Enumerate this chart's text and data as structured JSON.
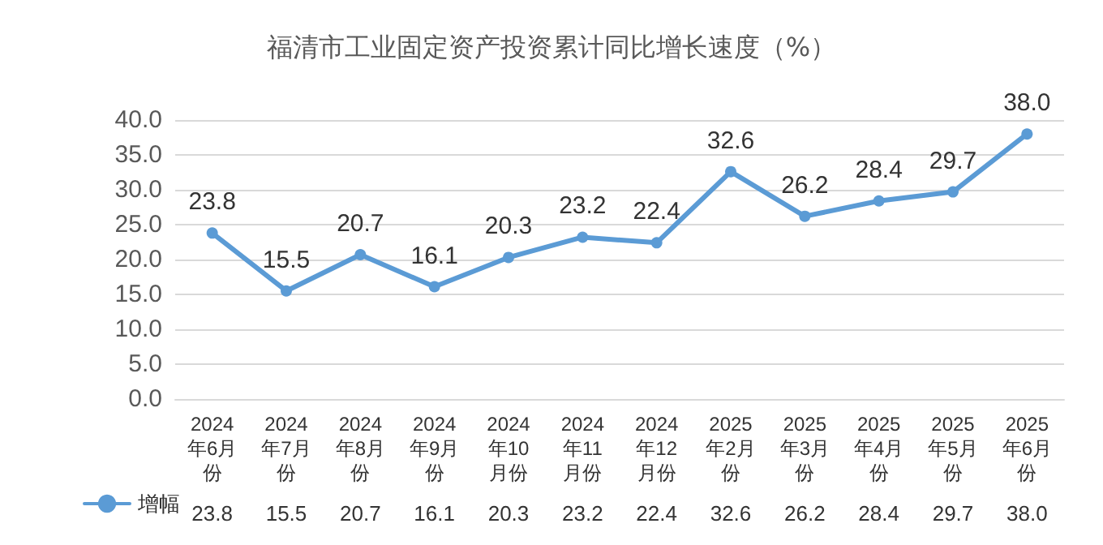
{
  "chart_data": {
    "type": "line",
    "title": "福清市工业固定资产投资累计同比增长速度（%）",
    "categories": [
      "2024年6月份",
      "2024年7月份",
      "2024年8月份",
      "2024年9月份",
      "2024年10月份",
      "2024年11月份",
      "2024年12月份",
      "2025年2月份",
      "2025年3月份",
      "2025年4月份",
      "2025年5月份",
      "2025年6月份"
    ],
    "series": [
      {
        "name": "增幅",
        "color": "#5b9bd5",
        "values": [
          23.8,
          15.5,
          20.7,
          16.1,
          20.3,
          23.2,
          22.4,
          32.6,
          26.2,
          28.4,
          29.7,
          38.0
        ],
        "value_labels": [
          "23.8",
          "15.5",
          "20.7",
          "16.1",
          "20.3",
          "23.2",
          "22.4",
          "32.6",
          "26.2",
          "28.4",
          "29.7",
          "38.0"
        ]
      }
    ],
    "ylim": [
      0,
      40
    ],
    "yticks": [
      {
        "value": 0,
        "label": "0.0"
      },
      {
        "value": 5,
        "label": "5.0"
      },
      {
        "value": 10,
        "label": "10.0"
      },
      {
        "value": 15,
        "label": "15.0"
      },
      {
        "value": 20,
        "label": "20.0"
      },
      {
        "value": 25,
        "label": "25.0"
      },
      {
        "value": 30,
        "label": "30.0"
      },
      {
        "value": 35,
        "label": "35.0"
      },
      {
        "value": 40,
        "label": "40.0"
      }
    ],
    "grid": "y",
    "legend": "bottom left",
    "marker": "circle",
    "line_style": "solid"
  }
}
